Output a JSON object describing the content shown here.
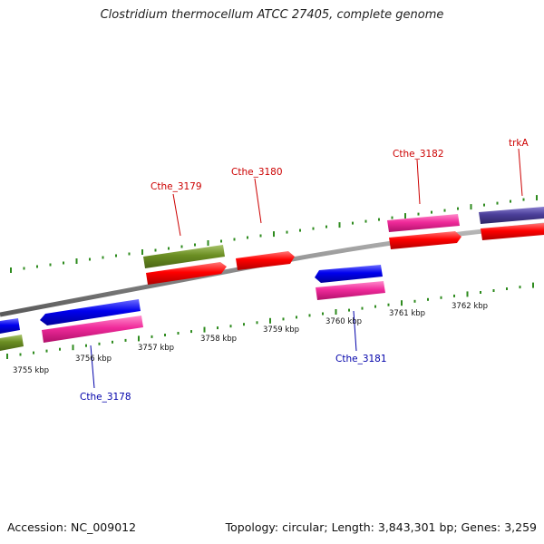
{
  "title": "Clostridium thermocellum ATCC 27405, complete genome",
  "footer": {
    "accession": "Accession: NC_009012",
    "summary": "Topology: circular; Length: 3,843,301 bp; Genes: 3,259"
  },
  "colors": {
    "backbone": "#8c8c8c",
    "tick": "#2e8b1e",
    "label_forward": "#cc0000",
    "label_reverse": "#0000aa",
    "cds_red": "#ff0000",
    "cds_pink": "#f02a9a",
    "cds_blue": "#0000ee",
    "cds_olive": "#6b8e23",
    "cds_slate": "#4b3f9a"
  },
  "scale": {
    "unit": "kbp",
    "labels": [
      "3755 kbp",
      "3756 kbp",
      "3757 kbp",
      "3758 kbp",
      "3759 kbp",
      "3760 kbp",
      "3761 kbp",
      "3762 kbp"
    ]
  },
  "gene_labels": [
    "Cthe_3178",
    "Cthe_3179",
    "Cthe_3180",
    "Cthe_3181",
    "Cthe_3182",
    "trkA"
  ]
}
